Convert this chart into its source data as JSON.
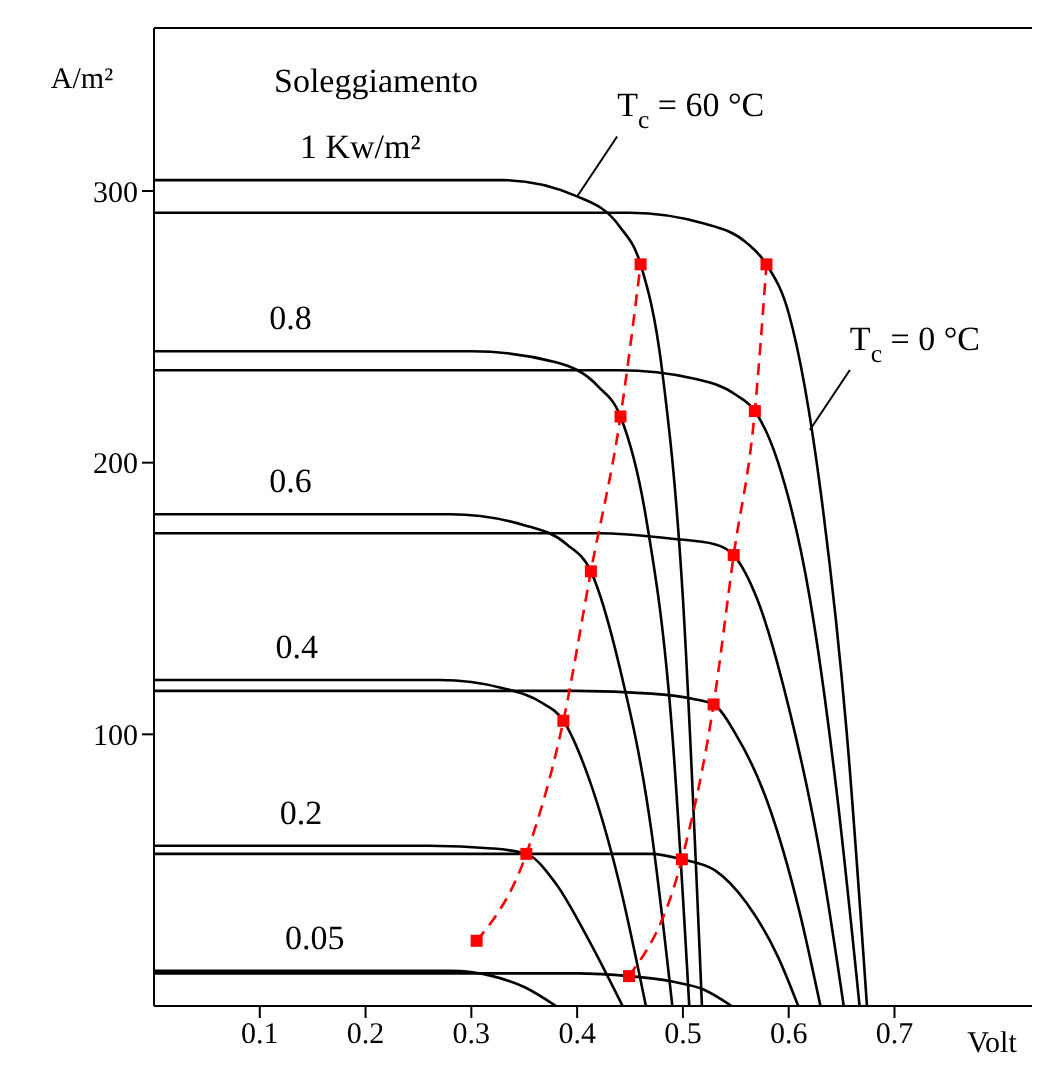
{
  "chart_data": {
    "type": "line",
    "xlabel": "Volt",
    "ylabel": "A/m²",
    "xlim": [
      0,
      0.83
    ],
    "ylim": [
      0,
      360
    ],
    "xticks": [
      0.1,
      0.2,
      0.3,
      0.4,
      0.5,
      0.6,
      0.7
    ],
    "yticks": [
      100,
      200,
      300
    ],
    "marker": "none",
    "line_style": "solid",
    "series": [
      {
        "color": "#000000",
        "x": [
          0,
          0.33,
          0.4,
          0.44,
          0.46,
          0.48,
          0.5,
          0.518
        ],
        "values": [
          304,
          304,
          298,
          287,
          273,
          235,
          150,
          0
        ]
      },
      {
        "color": "#000000",
        "x": [
          0,
          0.3,
          0.38,
          0.42,
          0.441,
          0.465,
          0.49,
          0.506
        ],
        "values": [
          241,
          241,
          237,
          228,
          217,
          180,
          100,
          0
        ]
      },
      {
        "color": "#000000",
        "x": [
          0,
          0.28,
          0.35,
          0.39,
          0.413,
          0.44,
          0.47,
          0.49
        ],
        "values": [
          181,
          181,
          177,
          170,
          160,
          125,
          65,
          0
        ]
      },
      {
        "color": "#000000",
        "x": [
          0,
          0.27,
          0.33,
          0.365,
          0.387,
          0.41,
          0.44,
          0.465
        ],
        "values": [
          120,
          120,
          117,
          112,
          105,
          85,
          45,
          0
        ]
      },
      {
        "color": "#000000",
        "x": [
          0,
          0.26,
          0.32,
          0.352,
          0.38,
          0.41,
          0.443
        ],
        "values": [
          59,
          59,
          58,
          56,
          45,
          25,
          0
        ]
      },
      {
        "color": "#000000",
        "x": [
          0,
          0.28,
          0.32,
          0.35,
          0.38
        ],
        "values": [
          13,
          13,
          11,
          7,
          0
        ]
      },
      {
        "color": "#000000",
        "x": [
          0,
          0.45,
          0.52,
          0.56,
          0.579,
          0.6,
          0.63,
          0.655,
          0.674
        ],
        "values": [
          292,
          292,
          288,
          281,
          273,
          255,
          190,
          100,
          0
        ]
      },
      {
        "color": "#000000",
        "x": [
          0,
          0.44,
          0.51,
          0.55,
          0.568,
          0.59,
          0.62,
          0.645,
          0.667
        ],
        "values": [
          234,
          234,
          231,
          225,
          219,
          200,
          150,
          80,
          0
        ]
      },
      {
        "color": "#000000",
        "x": [
          0,
          0.42,
          0.49,
          0.53,
          0.548,
          0.57,
          0.6,
          0.63,
          0.652
        ],
        "values": [
          174,
          174,
          172,
          170,
          166,
          150,
          110,
          55,
          0
        ]
      },
      {
        "color": "#000000",
        "x": [
          0,
          0.4,
          0.47,
          0.51,
          0.529,
          0.55,
          0.58,
          0.61,
          0.63
        ],
        "values": [
          116,
          116,
          115,
          113,
          111,
          100,
          75,
          35,
          0
        ]
      },
      {
        "color": "#000000",
        "x": [
          0,
          0.4,
          0.47,
          0.499,
          0.53,
          0.56,
          0.59,
          0.609
        ],
        "values": [
          56,
          56,
          56,
          54,
          50,
          38,
          18,
          0
        ]
      },
      {
        "color": "#000000",
        "x": [
          0,
          0.4,
          0.449,
          0.49,
          0.52,
          0.546
        ],
        "values": [
          12,
          12,
          11,
          9,
          6,
          0
        ]
      },
      {
        "color": "#ff0000",
        "line_style": "dashed",
        "marker": "square",
        "x": [
          0.305,
          0.352,
          0.387,
          0.413,
          0.441,
          0.46
        ],
        "values": [
          24,
          56,
          105,
          160,
          217,
          273
        ]
      },
      {
        "color": "#ff0000",
        "line_style": "dashed",
        "marker": "square",
        "x": [
          0.449,
          0.499,
          0.529,
          0.548,
          0.568,
          0.579
        ],
        "values": [
          11,
          54,
          111,
          166,
          219,
          273
        ]
      }
    ],
    "annotations": [
      "Soleggiamento",
      {
        "text": "1 Kw/m²",
        "x": 0.195,
        "y": 304
      },
      {
        "text": "0.8",
        "x": 0.129,
        "y": 241
      },
      {
        "text": "0.6",
        "x": 0.129,
        "y": 181
      },
      {
        "text": "0.4",
        "x": 0.135,
        "y": 120
      },
      {
        "text": "0.2",
        "x": 0.139,
        "y": 59
      },
      {
        "text": "0.05",
        "x": 0.152,
        "y": 13
      },
      {
        "text": "T$_{c}$= 60 °C",
        "x": 0.4,
        "y": 298
      },
      {
        "text": "T$_{c}$= 0 °C",
        "x": 0.62,
        "y": 212
      }
    ]
  }
}
